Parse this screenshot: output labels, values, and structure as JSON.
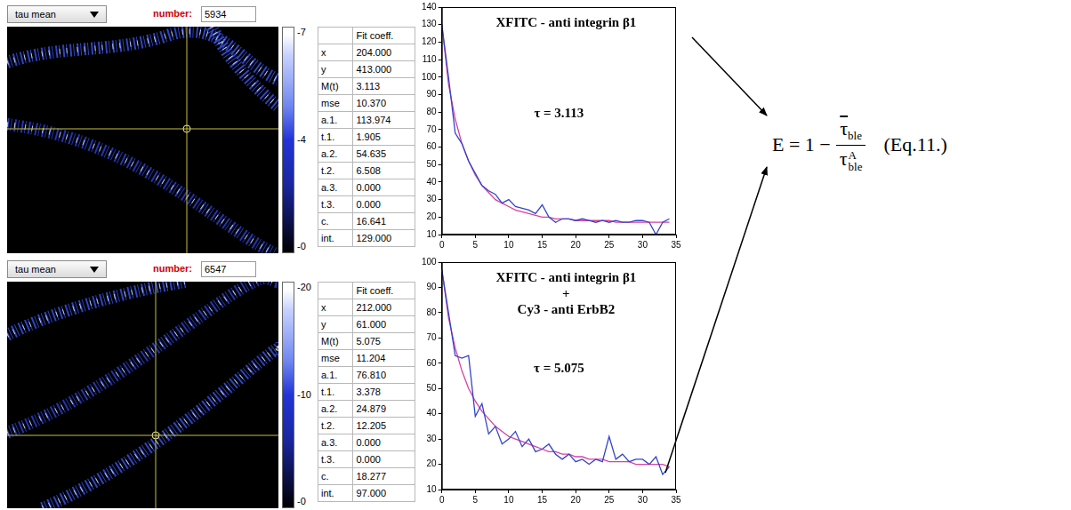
{
  "chart_data": [
    {
      "type": "line",
      "title": [
        "XFITC - anti integrin β1"
      ],
      "annotations": [
        "τ = 3.113"
      ],
      "x": [
        0,
        1,
        2,
        3,
        4,
        5,
        6,
        7,
        8,
        9,
        10,
        11,
        12,
        13,
        14,
        15,
        16,
        17,
        18,
        19,
        20,
        21,
        22,
        23,
        24,
        25,
        26,
        27,
        28,
        29,
        30,
        31,
        32,
        33,
        34
      ],
      "series": [
        {
          "color": "#3344cc",
          "values": [
            130,
            100,
            68,
            62,
            52,
            45,
            38,
            35,
            33,
            28,
            30,
            26,
            25,
            24,
            22,
            27,
            20,
            17,
            19,
            19,
            18,
            19,
            18,
            17,
            18,
            17,
            18,
            17,
            17,
            18,
            18,
            17,
            10,
            17,
            19
          ]
        },
        {
          "color": "#d9409f",
          "values": [
            130,
            96,
            76,
            62,
            52,
            44,
            38,
            34,
            30,
            28,
            26,
            24,
            23,
            22,
            21,
            20,
            20,
            19,
            19,
            19,
            18,
            18,
            18,
            18,
            18,
            18,
            17,
            17,
            17,
            17,
            17,
            17,
            17,
            17,
            17
          ]
        }
      ],
      "xlim": [
        0,
        35
      ],
      "xticks": [
        0,
        5,
        10,
        15,
        20,
        25,
        30,
        35
      ],
      "ylim": [
        10,
        140
      ],
      "yticks": [
        10,
        20,
        30,
        40,
        50,
        60,
        70,
        80,
        90,
        100,
        110,
        120,
        130,
        140
      ],
      "grid": false
    },
    {
      "type": "line",
      "title": [
        "XFITC - anti integrin β1",
        "+",
        "Cy3 - anti ErbB2"
      ],
      "annotations": [
        "τ = 5.075"
      ],
      "x": [
        0,
        1,
        2,
        3,
        4,
        5,
        6,
        7,
        8,
        9,
        10,
        11,
        12,
        13,
        14,
        15,
        16,
        17,
        18,
        19,
        20,
        21,
        22,
        23,
        24,
        25,
        26,
        27,
        28,
        29,
        30,
        31,
        32,
        33,
        34
      ],
      "series": [
        {
          "color": "#3344cc",
          "values": [
            97,
            80,
            63,
            62,
            63,
            39,
            44,
            32,
            35,
            28,
            30,
            33,
            27,
            30,
            25,
            26,
            28,
            24,
            22,
            24,
            21,
            22,
            20,
            22,
            21,
            31,
            22,
            24,
            21,
            22,
            22,
            20,
            23,
            16,
            19
          ]
        },
        {
          "color": "#d9409f",
          "values": [
            97,
            78,
            66,
            57,
            50,
            45,
            41,
            38,
            35,
            33,
            31,
            30,
            29,
            28,
            27,
            26,
            25,
            25,
            24,
            24,
            23,
            23,
            22,
            22,
            22,
            21,
            21,
            21,
            21,
            20,
            20,
            20,
            20,
            20,
            19
          ]
        }
      ],
      "xlim": [
        0,
        35
      ],
      "xticks": [
        0,
        5,
        10,
        15,
        20,
        25,
        30,
        35
      ],
      "ylim": [
        10,
        100
      ],
      "yticks": [
        10,
        20,
        30,
        40,
        50,
        60,
        70,
        80,
        90,
        100
      ],
      "grid": false
    }
  ],
  "panels": [
    {
      "dropdown": "tau mean",
      "number_label": "number:",
      "number": "5934",
      "colorbar_labels": [
        "-7",
        "-4",
        "-0"
      ],
      "table": {
        "header": "Fit coeff.",
        "rows": [
          [
            "x",
            "204.000"
          ],
          [
            "y",
            "413.000"
          ],
          [
            "M(t)",
            "3.113"
          ],
          [
            "mse",
            "10.370"
          ],
          [
            "a.1.",
            "113.974"
          ],
          [
            "t.1.",
            "1.905"
          ],
          [
            "a.2.",
            "54.635"
          ],
          [
            "t.2.",
            "6.508"
          ],
          [
            "a.3.",
            "0.000"
          ],
          [
            "t.3.",
            "0.000"
          ],
          [
            "c.",
            "16.641"
          ],
          [
            "int.",
            "129.000"
          ]
        ]
      }
    },
    {
      "dropdown": "tau mean",
      "number_label": "number:",
      "number": "6547",
      "colorbar_labels": [
        "-20",
        "-10",
        "-0"
      ],
      "table": {
        "header": "Fit coeff.",
        "rows": [
          [
            "x",
            "212.000"
          ],
          [
            "y",
            "61.000"
          ],
          [
            "M(t)",
            "5.075"
          ],
          [
            "mse",
            "11.204"
          ],
          [
            "a.1.",
            "76.810"
          ],
          [
            "t.1.",
            "3.378"
          ],
          [
            "a.2.",
            "24.879"
          ],
          [
            "t.2.",
            "12.205"
          ],
          [
            "a.3.",
            "0.000"
          ],
          [
            "t.3.",
            "0.000"
          ],
          [
            "c.",
            "18.277"
          ],
          [
            "int.",
            "97.000"
          ]
        ]
      }
    }
  ],
  "equation": {
    "lhs": "E = 1 −",
    "numerator": "τ",
    "numerator_sub": "ble",
    "denominator": "τ",
    "denominator_sub": "ble",
    "denominator_sup": "A",
    "label": "(Eq.11.)"
  }
}
